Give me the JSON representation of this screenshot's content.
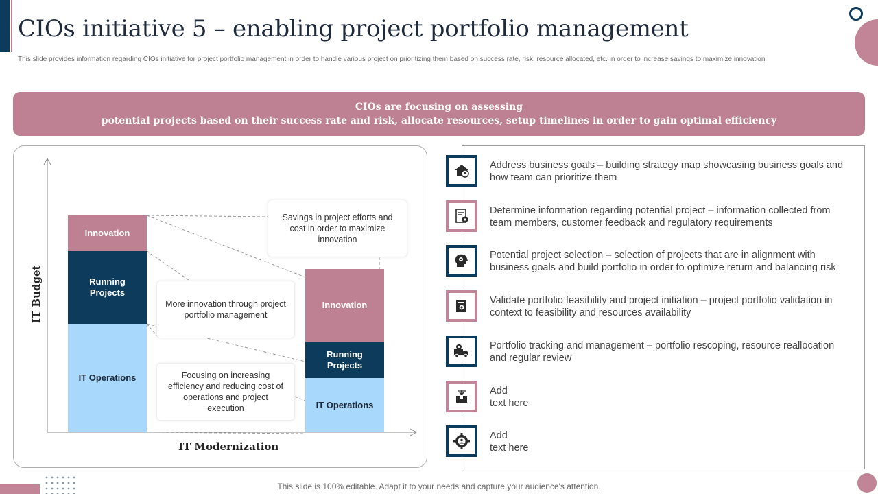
{
  "slide": {
    "title": "CIOs initiative 5 – enabling project portfolio management",
    "subtitle": "This slide provides information regarding CIOs initiative  for project portfolio management  in order to handle various project on prioritizing them based on success rate, risk, resource allocated, etc. in order to increase savings to maximize innovation",
    "banner_line1": "CIOs are focusing on assessing",
    "banner_line2": "potential projects based on their success rate and risk, allocate  resources, setup timelines in order to gain optimal efficiency",
    "footer": "This slide is 100% editable. Adapt it to your needs and capture your audience's attention."
  },
  "chart": {
    "x_axis_label": "IT Modernization",
    "y_axis_label": "IT Budget",
    "left_bar": {
      "innovation": "Innovation",
      "running_line1": "Running",
      "running_line2": "Projects",
      "operations": "IT Operations"
    },
    "right_bar": {
      "innovation": "Innovation",
      "running_line1": "Running",
      "running_line2": "Projects",
      "operations": "IT Operations"
    },
    "callouts": {
      "savings": "Savings in project efforts and cost in order to maximize innovation",
      "innovation": "More innovation through project portfolio management",
      "efficiency": "Focusing on increasing efficiency and reducing cost of operations and project execution"
    },
    "colors": {
      "innovation": "#bd8193",
      "running": "#0d3b5c",
      "operations": "#a8d8fb"
    }
  },
  "list": {
    "items": [
      {
        "icon": "house-location-icon",
        "style": "navy",
        "text": "Address business goals – building strategy map showcasing business goals and how team can prioritize them"
      },
      {
        "icon": "document-settings-icon",
        "style": "pink",
        "text": "Determine information regarding potential project – information collected from team members, customer feedback and regulatory requirements"
      },
      {
        "icon": "head-gears-icon",
        "style": "navy",
        "text": "Potential project selection – selection of projects that are in alignment with business goals and build portfolio in order to optimize return and balancing risk"
      },
      {
        "icon": "document-seal-icon",
        "style": "pink",
        "text": "Validate portfolio feasibility and project initiation – project portfolio validation in context to feasibility and resources availability"
      },
      {
        "icon": "truck-location-icon",
        "style": "navy",
        "text": "Portfolio tracking and management – portfolio rescoping, resource reallocation and regular review"
      },
      {
        "icon": "delivery-box-icon",
        "style": "pink",
        "text": "Add\ntext here"
      },
      {
        "icon": "gear-person-icon",
        "style": "navy",
        "text": "Add\ntext here"
      }
    ]
  }
}
